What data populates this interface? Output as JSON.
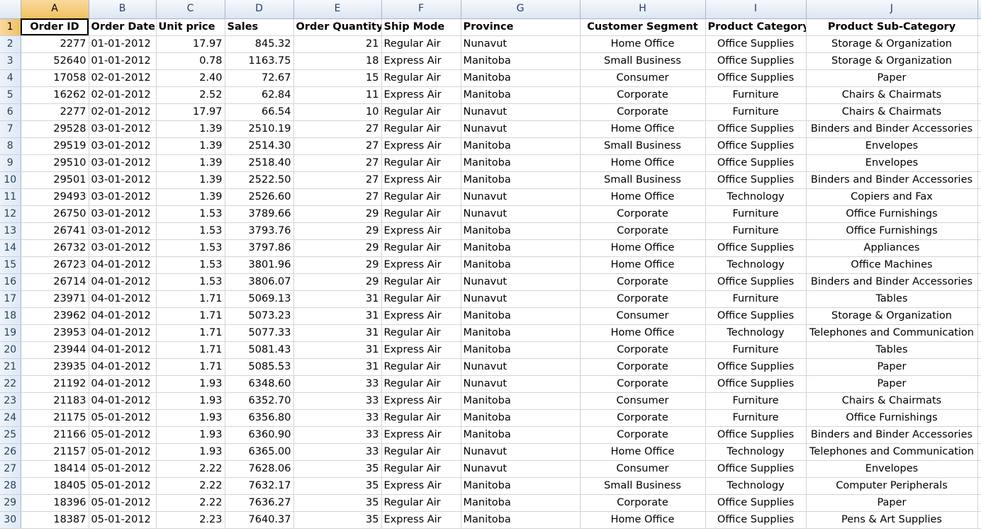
{
  "columns": [
    "A",
    "B",
    "C",
    "D",
    "E",
    "F",
    "G",
    "H",
    "I",
    "J"
  ],
  "selected_cell": "A1",
  "header_row": {
    "row_number": "1",
    "cells": [
      "Order ID",
      "Order Date",
      "Unit price",
      "Sales",
      "Order Quantity",
      "Ship Mode",
      "Province",
      "Customer Segment",
      "Product Category",
      "Product Sub-Category"
    ]
  },
  "rows": [
    {
      "n": "2",
      "cells": [
        "2277",
        "01-01-2012",
        "17.97",
        "845.32",
        "21",
        "Regular Air",
        "Nunavut",
        "Home Office",
        "Office Supplies",
        "Storage & Organization"
      ]
    },
    {
      "n": "3",
      "cells": [
        "52640",
        "01-01-2012",
        "0.78",
        "1163.75",
        "18",
        "Express Air",
        "Manitoba",
        "Small Business",
        "Office Supplies",
        "Storage & Organization"
      ]
    },
    {
      "n": "4",
      "cells": [
        "17058",
        "02-01-2012",
        "2.40",
        "72.67",
        "15",
        "Regular Air",
        "Manitoba",
        "Consumer",
        "Office Supplies",
        "Paper"
      ]
    },
    {
      "n": "5",
      "cells": [
        "16262",
        "02-01-2012",
        "2.52",
        "62.84",
        "11",
        "Express Air",
        "Manitoba",
        "Corporate",
        "Furniture",
        "Chairs & Chairmats"
      ]
    },
    {
      "n": "6",
      "cells": [
        "2277",
        "02-01-2012",
        "17.97",
        "66.54",
        "10",
        "Regular Air",
        "Nunavut",
        "Corporate",
        "Furniture",
        "Chairs & Chairmats"
      ]
    },
    {
      "n": "7",
      "cells": [
        "29528",
        "03-01-2012",
        "1.39",
        "2510.19",
        "27",
        "Regular Air",
        "Nunavut",
        "Home Office",
        "Office Supplies",
        "Binders and Binder Accessories"
      ]
    },
    {
      "n": "8",
      "cells": [
        "29519",
        "03-01-2012",
        "1.39",
        "2514.30",
        "27",
        "Express Air",
        "Manitoba",
        "Small Business",
        "Office Supplies",
        "Envelopes"
      ]
    },
    {
      "n": "9",
      "cells": [
        "29510",
        "03-01-2012",
        "1.39",
        "2518.40",
        "27",
        "Regular Air",
        "Manitoba",
        "Home Office",
        "Office Supplies",
        "Envelopes"
      ]
    },
    {
      "n": "10",
      "cells": [
        "29501",
        "03-01-2012",
        "1.39",
        "2522.50",
        "27",
        "Express Air",
        "Manitoba",
        "Small Business",
        "Office Supplies",
        "Binders and Binder Accessories"
      ]
    },
    {
      "n": "11",
      "cells": [
        "29493",
        "03-01-2012",
        "1.39",
        "2526.60",
        "27",
        "Regular Air",
        "Nunavut",
        "Home Office",
        "Technology",
        "Copiers and Fax"
      ]
    },
    {
      "n": "12",
      "cells": [
        "26750",
        "03-01-2012",
        "1.53",
        "3789.66",
        "29",
        "Regular Air",
        "Nunavut",
        "Corporate",
        "Furniture",
        "Office Furnishings"
      ]
    },
    {
      "n": "13",
      "cells": [
        "26741",
        "03-01-2012",
        "1.53",
        "3793.76",
        "29",
        "Express Air",
        "Manitoba",
        "Corporate",
        "Furniture",
        "Office Furnishings"
      ]
    },
    {
      "n": "14",
      "cells": [
        "26732",
        "03-01-2012",
        "1.53",
        "3797.86",
        "29",
        "Regular Air",
        "Manitoba",
        "Home Office",
        "Office Supplies",
        "Appliances"
      ]
    },
    {
      "n": "15",
      "cells": [
        "26723",
        "04-01-2012",
        "1.53",
        "3801.96",
        "29",
        "Express Air",
        "Manitoba",
        "Home Office",
        "Technology",
        "Office Machines"
      ]
    },
    {
      "n": "16",
      "cells": [
        "26714",
        "04-01-2012",
        "1.53",
        "3806.07",
        "29",
        "Regular Air",
        "Nunavut",
        "Corporate",
        "Office Supplies",
        "Binders and Binder Accessories"
      ]
    },
    {
      "n": "17",
      "cells": [
        "23971",
        "04-01-2012",
        "1.71",
        "5069.13",
        "31",
        "Regular Air",
        "Nunavut",
        "Corporate",
        "Furniture",
        "Tables"
      ]
    },
    {
      "n": "18",
      "cells": [
        "23962",
        "04-01-2012",
        "1.71",
        "5073.23",
        "31",
        "Express Air",
        "Manitoba",
        "Consumer",
        "Office Supplies",
        "Storage & Organization"
      ]
    },
    {
      "n": "19",
      "cells": [
        "23953",
        "04-01-2012",
        "1.71",
        "5077.33",
        "31",
        "Regular Air",
        "Manitoba",
        "Home Office",
        "Technology",
        "Telephones and Communication"
      ]
    },
    {
      "n": "20",
      "cells": [
        "23944",
        "04-01-2012",
        "1.71",
        "5081.43",
        "31",
        "Express Air",
        "Manitoba",
        "Corporate",
        "Furniture",
        "Tables"
      ]
    },
    {
      "n": "21",
      "cells": [
        "23935",
        "04-01-2012",
        "1.71",
        "5085.53",
        "31",
        "Regular Air",
        "Nunavut",
        "Corporate",
        "Office Supplies",
        "Paper"
      ]
    },
    {
      "n": "22",
      "cells": [
        "21192",
        "04-01-2012",
        "1.93",
        "6348.60",
        "33",
        "Regular Air",
        "Nunavut",
        "Corporate",
        "Office Supplies",
        "Paper"
      ]
    },
    {
      "n": "23",
      "cells": [
        "21183",
        "04-01-2012",
        "1.93",
        "6352.70",
        "33",
        "Express Air",
        "Manitoba",
        "Consumer",
        "Furniture",
        "Chairs & Chairmats"
      ]
    },
    {
      "n": "24",
      "cells": [
        "21175",
        "05-01-2012",
        "1.93",
        "6356.80",
        "33",
        "Regular Air",
        "Manitoba",
        "Corporate",
        "Furniture",
        "Office Furnishings"
      ]
    },
    {
      "n": "25",
      "cells": [
        "21166",
        "05-01-2012",
        "1.93",
        "6360.90",
        "33",
        "Express Air",
        "Manitoba",
        "Corporate",
        "Office Supplies",
        "Binders and Binder Accessories"
      ]
    },
    {
      "n": "26",
      "cells": [
        "21157",
        "05-01-2012",
        "1.93",
        "6365.00",
        "33",
        "Regular Air",
        "Nunavut",
        "Home Office",
        "Technology",
        "Telephones and Communication"
      ]
    },
    {
      "n": "27",
      "cells": [
        "18414",
        "05-01-2012",
        "2.22",
        "7628.06",
        "35",
        "Regular Air",
        "Nunavut",
        "Consumer",
        "Office Supplies",
        "Envelopes"
      ]
    },
    {
      "n": "28",
      "cells": [
        "18405",
        "05-01-2012",
        "2.22",
        "7632.17",
        "35",
        "Express Air",
        "Manitoba",
        "Small Business",
        "Technology",
        "Computer Peripherals"
      ]
    },
    {
      "n": "29",
      "cells": [
        "18396",
        "05-01-2012",
        "2.22",
        "7636.27",
        "35",
        "Regular Air",
        "Manitoba",
        "Corporate",
        "Office Supplies",
        "Paper"
      ]
    },
    {
      "n": "30",
      "cells": [
        "18387",
        "05-01-2012",
        "2.23",
        "7640.37",
        "35",
        "Express Air",
        "Manitoba",
        "Home Office",
        "Office Supplies",
        "Pens & Art Supplies"
      ]
    }
  ]
}
